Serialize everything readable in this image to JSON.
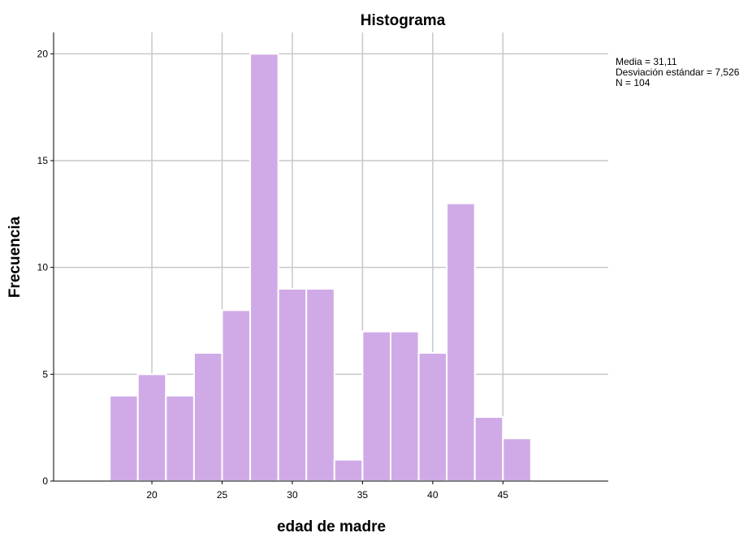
{
  "chart_data": {
    "type": "bar",
    "title": "Histograma",
    "xlabel": "edad de madre",
    "ylabel": "Frecuencia",
    "bin_edges": [
      17,
      19,
      21,
      23,
      25,
      27,
      29,
      31,
      33,
      35,
      37,
      39,
      41,
      43,
      45,
      47
    ],
    "values": [
      4,
      5,
      4,
      6,
      8,
      20,
      9,
      9,
      1,
      7,
      7,
      6,
      13,
      3,
      2
    ],
    "xlim": [
      13,
      52.5
    ],
    "ylim": [
      0,
      21
    ],
    "xticks": [
      "20",
      "25",
      "30",
      "35",
      "40",
      "45"
    ],
    "xtick_values": [
      20,
      25,
      30,
      35,
      40,
      45
    ],
    "yticks": [
      "0",
      "5",
      "10",
      "15",
      "20"
    ],
    "ytick_values": [
      0,
      5,
      10,
      15,
      20
    ],
    "grid": true,
    "bar_color": "#d0aae6",
    "grid_color": "#c8c8c8",
    "stats": [
      "Media = 31,11",
      "Desviación estándar = 7,526",
      "N = 104"
    ]
  }
}
